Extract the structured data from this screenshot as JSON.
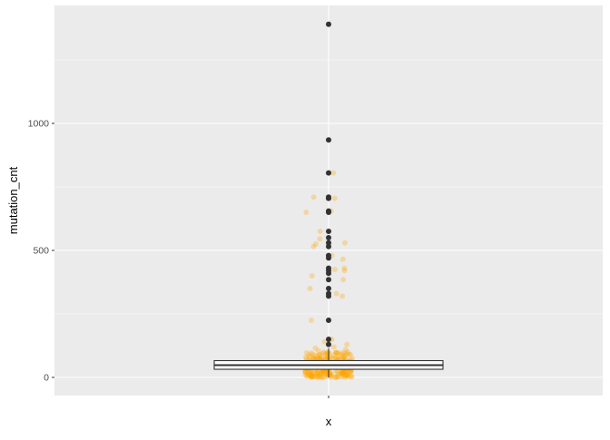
{
  "chart_data": {
    "type": "box-with-jitter",
    "title": "",
    "xlabel": "x",
    "ylabel": "mutation_cnt",
    "x_categories": [
      ""
    ],
    "ylim": [
      -70,
      1460
    ],
    "y_ticks": [
      0,
      500,
      1000
    ],
    "y_tick_labels": [
      "0",
      "500",
      "1000"
    ],
    "grid": true,
    "panel_background": "#EBEBEB",
    "grid_color": "#FFFFFF",
    "box": {
      "q1": 32,
      "median": 48,
      "q3": 66,
      "whisker_low": 0,
      "whisker_high": 115,
      "fill": "#FFFFFF",
      "outline": "#333333"
    },
    "outliers": [
      1390,
      935,
      805,
      710,
      705,
      655,
      650,
      575,
      550,
      530,
      515,
      480,
      470,
      430,
      420,
      410,
      385,
      350,
      330,
      320,
      225,
      150,
      130
    ],
    "outlier_color": "#333333",
    "jitter_color": "#FFA500",
    "jitter_opacity": 0.3,
    "jitter_high_values": [
      805,
      710,
      705,
      705,
      655,
      650,
      575,
      545,
      530,
      525,
      515,
      480,
      465,
      430,
      425,
      420,
      400,
      385,
      350,
      330,
      320,
      225,
      150,
      140,
      130,
      120,
      115,
      110,
      105,
      100,
      98,
      95
    ],
    "jitter_bulk_range": [
      0,
      100
    ],
    "jitter_bulk_count": 260
  }
}
